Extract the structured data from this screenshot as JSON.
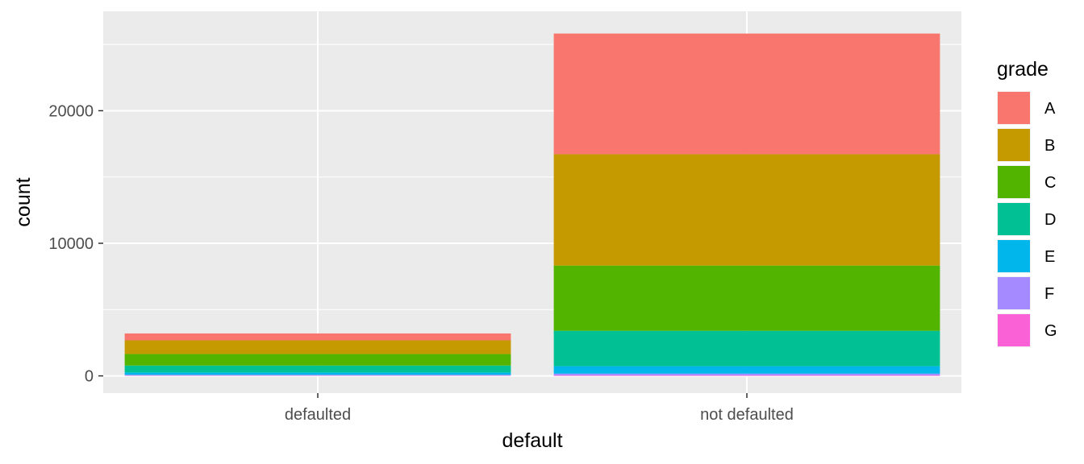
{
  "chart_data": {
    "type": "bar",
    "stacked": true,
    "categories": [
      "defaulted",
      "not defaulted"
    ],
    "xlabel": "default",
    "ylabel": "count",
    "ylim": [
      -1300,
      27500
    ],
    "yticks": [
      0,
      10000,
      20000
    ],
    "ytick_labels": [
      "0",
      "10000",
      "20000"
    ],
    "grid": true,
    "legend": {
      "title": "grade",
      "position": "right"
    },
    "series": [
      {
        "name": "A",
        "color": "#F8766D",
        "values": [
          520,
          9100
        ]
      },
      {
        "name": "B",
        "color": "#C49A00",
        "values": [
          1030,
          8400
        ]
      },
      {
        "name": "C",
        "color": "#53B400",
        "values": [
          870,
          4920
        ]
      },
      {
        "name": "D",
        "color": "#00C094",
        "values": [
          520,
          2670
        ]
      },
      {
        "name": "E",
        "color": "#00B6EB",
        "values": [
          180,
          560
        ]
      },
      {
        "name": "F",
        "color": "#A58AFF",
        "values": [
          60,
          130
        ]
      },
      {
        "name": "G",
        "color": "#FB61D7",
        "values": [
          20,
          40
        ]
      }
    ]
  }
}
